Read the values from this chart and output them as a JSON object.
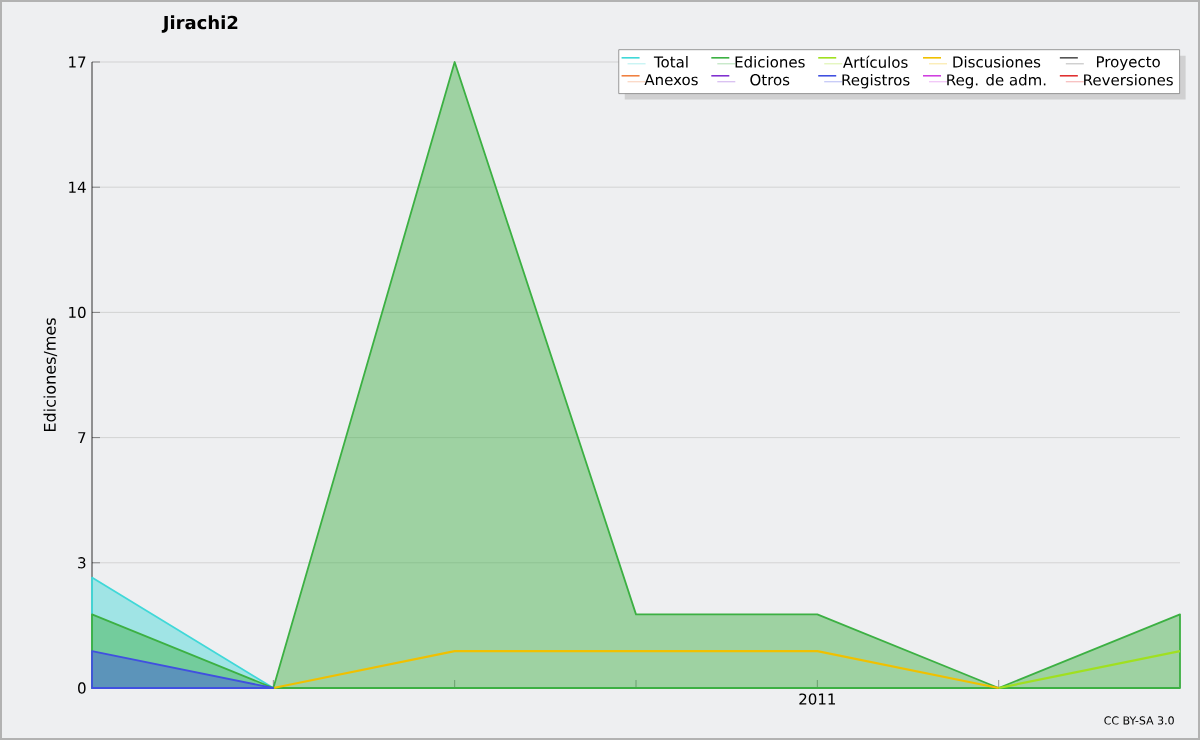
{
  "chart_data": {
    "type": "area",
    "title": "Jirachi2",
    "ylabel": "Ediciones/mes",
    "categories": [
      null,
      null,
      null,
      null,
      "2011",
      null,
      null
    ],
    "series": [
      {
        "name": "Total",
        "color": "#40d8d8",
        "values": [
          3,
          0,
          null,
          null,
          null,
          null,
          null
        ]
      },
      {
        "name": "Ediciones",
        "color": "#3cb043",
        "values": [
          2,
          0,
          17,
          2,
          2,
          0,
          2
        ]
      },
      {
        "name": "Artículos",
        "color": "#a0e020",
        "type": "line",
        "values": [
          null,
          null,
          null,
          null,
          null,
          0,
          1
        ]
      },
      {
        "name": "Discusiones",
        "color": "#f0c000",
        "type": "line",
        "values": [
          null,
          0,
          1,
          1,
          1,
          0,
          null
        ]
      },
      {
        "name": "Proyecto",
        "color": "#555555",
        "type": "line",
        "values": [
          null,
          null,
          null,
          null,
          null,
          null,
          null
        ]
      },
      {
        "name": "Anexos",
        "color": "#f08040",
        "type": "line",
        "values": [
          null,
          null,
          null,
          null,
          null,
          null,
          null
        ]
      },
      {
        "name": "Otros",
        "color": "#8030d0",
        "type": "line",
        "values": [
          null,
          null,
          null,
          null,
          null,
          null,
          null
        ]
      },
      {
        "name": "Registros",
        "color": "#4050e0",
        "values": [
          1,
          0,
          null,
          null,
          null,
          null,
          null
        ]
      },
      {
        "name": "Reg. de adm.",
        "color": "#d040e0",
        "type": "line",
        "values": [
          null,
          null,
          null,
          null,
          null,
          null,
          null
        ]
      },
      {
        "name": "Reversiones",
        "color": "#e03030",
        "type": "line",
        "values": [
          null,
          null,
          null,
          null,
          null,
          null,
          null
        ]
      }
    ],
    "ylim": [
      0,
      17
    ],
    "yticks": [
      0,
      {
        "value": 3.4,
        "label": "3"
      },
      {
        "value": 6.8,
        "label": "7"
      },
      {
        "value": 10.2,
        "label": "10"
      },
      {
        "value": 13.6,
        "label": "14"
      },
      17
    ],
    "grid": "y",
    "legend": "top right",
    "annotations": [
      "CC BY-SA 3.0"
    ]
  }
}
